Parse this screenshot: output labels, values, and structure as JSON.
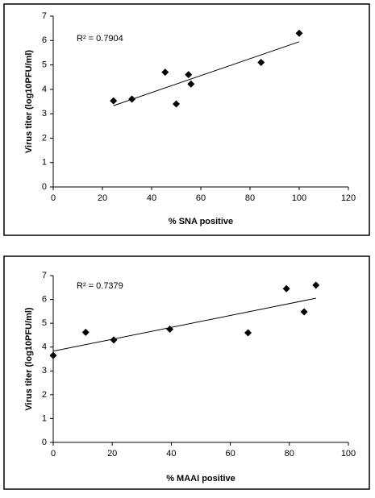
{
  "chart_data": [
    {
      "type": "scatter",
      "x_label": "% SNA positive",
      "y_label": "Virus titer (log10PFU/ml)",
      "annotation": "R² = 0.7904",
      "x": [
        24.5,
        32,
        45.5,
        50,
        55,
        56,
        84.5,
        100
      ],
      "values": [
        3.53,
        3.6,
        4.7,
        3.4,
        4.6,
        4.22,
        5.1,
        6.3
      ],
      "color": "#000000",
      "trendline": {
        "x": [
          24.5,
          100
        ],
        "values": [
          3.33,
          5.95
        ]
      },
      "xlim": [
        0,
        120
      ],
      "xticks": [
        0,
        20,
        40,
        60,
        80,
        100,
        120
      ],
      "ylim": [
        0,
        7
      ],
      "yticks": [
        0,
        1,
        2,
        3,
        4,
        5,
        6,
        7
      ]
    },
    {
      "type": "scatter",
      "x_label": "% MAAI positive",
      "y_label": "Virus titer (log10PFU/ml)",
      "annotation": "R² = 0.7379",
      "x": [
        0,
        11,
        20.5,
        39.5,
        66,
        79,
        85,
        89
      ],
      "values": [
        3.65,
        4.62,
        4.3,
        4.75,
        4.6,
        6.45,
        5.48,
        6.6
      ],
      "color": "#000000",
      "trendline": {
        "x": [
          0,
          89
        ],
        "values": [
          3.83,
          6.05
        ]
      },
      "xlim": [
        0,
        100
      ],
      "xticks": [
        0,
        20,
        40,
        60,
        80,
        100
      ],
      "ylim": [
        0,
        7
      ],
      "yticks": [
        0,
        1,
        2,
        3,
        4,
        5,
        6,
        7
      ]
    }
  ]
}
